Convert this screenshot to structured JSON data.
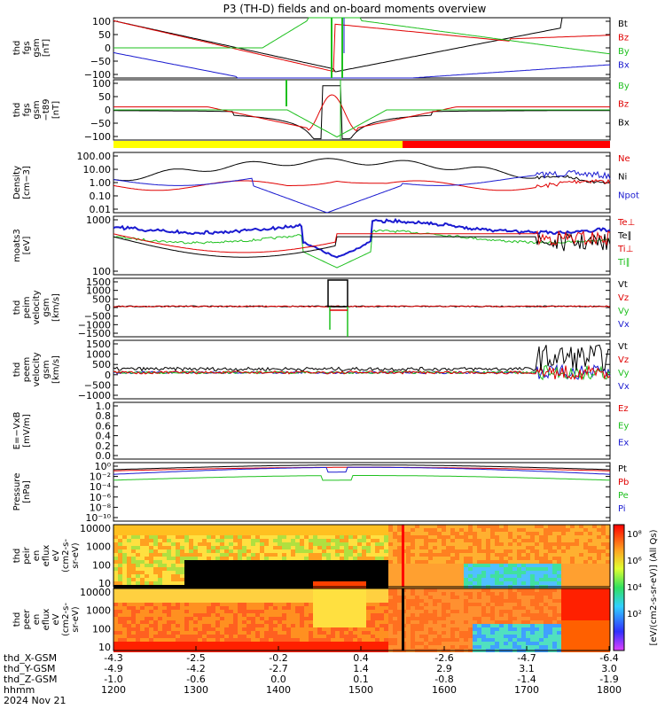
{
  "title": "P3 (TH-D) fields and on-board moments overview",
  "colors": {
    "black": "#000000",
    "red": "#e00000",
    "green": "#1ec01e",
    "blue": "#1a1ad0",
    "yellow": "#ffff00",
    "bar_red": "#ff0000"
  },
  "panels": [
    {
      "ylabel": [
        "thd",
        "fgs",
        "gsm",
        "[nT]"
      ],
      "ticks": [
        "100",
        "50",
        "0",
        "−50",
        "−100"
      ],
      "legend": [
        [
          "Bt",
          "black"
        ],
        [
          "Bz",
          "red"
        ],
        [
          "By",
          "green"
        ],
        [
          "Bx",
          "blue"
        ]
      ]
    },
    {
      "ylabel": [
        "thd",
        "fgs",
        "gsm",
        "−t89",
        "[nT]"
      ],
      "ticks": [
        "100",
        "50",
        "0",
        "−50",
        "−100"
      ],
      "legend": [
        [
          "By",
          "green"
        ],
        [
          "Bz",
          "red"
        ],
        [
          "Bx",
          "black"
        ]
      ]
    },
    {
      "ylabel": [
        "Density",
        "[cm−3]"
      ],
      "ticks": [
        "100.00",
        "10.00",
        "1.00",
        "0.10",
        "0.01"
      ],
      "legend": [
        [
          "Ne",
          "red"
        ],
        [
          "Ni",
          "black"
        ],
        [
          "Npot",
          "blue"
        ]
      ]
    },
    {
      "ylabel": [
        "moats3",
        "[eV]"
      ],
      "ticks": [
        "1000",
        "100"
      ],
      "legend": [
        [
          "Te⊥",
          "red"
        ],
        [
          "Te∥",
          "black"
        ],
        [
          "Ti⊥",
          "red"
        ],
        [
          "Ti∥",
          "green"
        ]
      ]
    },
    {
      "ylabel": [
        "thd",
        "peim",
        "velocity",
        "gsm",
        "[km/s]"
      ],
      "ticks": [
        "1500",
        "1000",
        "500",
        "0",
        "−500",
        "−1000",
        "−1500"
      ],
      "legend": [
        [
          "Vt",
          "black"
        ],
        [
          "Vz",
          "red"
        ],
        [
          "Vy",
          "green"
        ],
        [
          "Vx",
          "blue"
        ]
      ]
    },
    {
      "ylabel": [
        "thd",
        "peem",
        "velocity",
        "gsm",
        "[km/s]"
      ],
      "ticks": [
        "1500",
        "1000",
        "500",
        "0",
        "−500",
        "−1000"
      ],
      "legend": [
        [
          "Vt",
          "black"
        ],
        [
          "Vz",
          "red"
        ],
        [
          "Vy",
          "green"
        ],
        [
          "Vx",
          "blue"
        ]
      ]
    },
    {
      "ylabel": [
        "E=−VxB",
        "[mV/m]"
      ],
      "ticks": [
        "1.0",
        "0.8",
        "0.6",
        "0.4",
        "0.2",
        "0.0"
      ],
      "legend": [
        [
          "Ez",
          "red"
        ],
        [
          "Ey",
          "green"
        ],
        [
          "Ex",
          "blue"
        ]
      ]
    },
    {
      "ylabel": [
        "Pressure",
        "[nPa]"
      ],
      "ticks": [
        "10⁰",
        "10⁻²",
        "10⁻⁴",
        "10⁻⁶",
        "10⁻⁸",
        "10⁻¹⁰"
      ],
      "legend": [
        [
          "Pt",
          "black"
        ],
        [
          "Pb",
          "red"
        ],
        [
          "Pe",
          "green"
        ],
        [
          "Pi",
          "blue"
        ]
      ]
    },
    {
      "ylabel": [
        "thd",
        "peir",
        "en",
        "eflux",
        "eV",
        "(cm2-s-",
        "sr-eV)"
      ],
      "ticks": [
        "10000",
        "1000",
        "100",
        "10"
      ],
      "legend": []
    },
    {
      "ylabel": [
        "thd",
        "peer",
        "en",
        "eflux",
        "eV",
        "(cm2-s-",
        "sr-eV)"
      ],
      "ticks": [
        "10000",
        "1000",
        "100",
        "10"
      ],
      "legend": []
    }
  ],
  "colorbar": {
    "ticks": [
      "10⁸",
      "10⁶",
      "10⁴",
      "10²"
    ],
    "label": "[eV/(cm2-s-sr-eV)] (All Qs)"
  },
  "xaxis": {
    "rows": [
      {
        "label": "thd_X-GSM",
        "values": [
          "-4.3",
          "-2.5",
          "-0.2",
          "0.4",
          "-2.6",
          "-4.7",
          "-6.4"
        ]
      },
      {
        "label": "thd_Y-GSM",
        "values": [
          "-4.9",
          "-4.2",
          "-2.7",
          "1.4",
          "2.9",
          "3.1",
          "3.0"
        ]
      },
      {
        "label": "thd_Z-GSM",
        "values": [
          "-1.0",
          "-0.6",
          "0.0",
          "0.1",
          "-0.8",
          "-1.4",
          "-1.9"
        ]
      },
      {
        "label": "hhmm",
        "values": [
          "1200",
          "1300",
          "1400",
          "1500",
          "1600",
          "1700",
          "1800"
        ]
      }
    ],
    "date": "2024 Nov 21"
  },
  "chart_data": {
    "type": "line",
    "title": "P3 (TH-D) fields and on-board moments overview",
    "x_time_hhmm": [
      "1200",
      "1300",
      "1400",
      "1500",
      "1600",
      "1700",
      "1800"
    ],
    "series": [
      {
        "panel": "fgs gsm [nT]",
        "name": "Bt",
        "values": [
          85,
          40,
          20,
          100,
          40,
          60,
          80
        ]
      },
      {
        "panel": "fgs gsm [nT]",
        "name": "Bz",
        "values": [
          85,
          35,
          20,
          -100,
          30,
          50,
          35
        ]
      },
      {
        "panel": "fgs gsm [nT]",
        "name": "By",
        "values": [
          0,
          15,
          60,
          100,
          80,
          50,
          10
        ]
      },
      {
        "panel": "fgs gsm [nT]",
        "name": "Bx",
        "values": [
          -20,
          -90,
          -100,
          100,
          -100,
          -80,
          -70
        ]
      },
      {
        "panel": "Density [cm-3]",
        "name": "Ni",
        "values": [
          2,
          10,
          40,
          10,
          30,
          3,
          2
        ]
      },
      {
        "panel": "Density [cm-3]",
        "name": "Ne",
        "values": [
          1.5,
          1,
          1,
          3,
          0.8,
          1,
          1.5
        ]
      },
      {
        "panel": "Density [cm-3]",
        "name": "Npot",
        "values": [
          2,
          1,
          0.2,
          0.01,
          0.5,
          1,
          2
        ]
      }
    ],
    "ylim": [
      -100,
      100
    ]
  }
}
